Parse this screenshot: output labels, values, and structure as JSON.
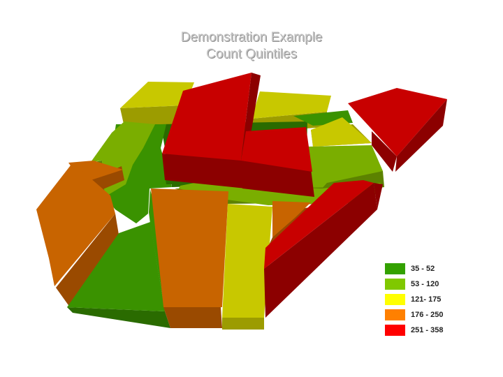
{
  "title": {
    "line1": "Demonstration Example",
    "line2": "Count Quintiles"
  },
  "legend": [
    {
      "label": "35 - 52",
      "color": "#33a100"
    },
    {
      "label": "53 - 120",
      "color": "#80c800"
    },
    {
      "label": "121- 175",
      "color": "#ffff00"
    },
    {
      "label": "176 - 250",
      "color": "#ff8000"
    },
    {
      "label": "251 - 358",
      "color": "#ff0000"
    }
  ],
  "class_colors": {
    "c1": {
      "top": "#3a9200",
      "side": "#2a6b00"
    },
    "c2": {
      "top": "#7aae00",
      "side": "#5c8200"
    },
    "c3": {
      "top": "#c8c800",
      "side": "#9c9c00"
    },
    "c4": {
      "top": "#c86400",
      "side": "#9a4a00"
    },
    "c5": {
      "top": "#c80000",
      "side": "#8c0000"
    }
  }
}
